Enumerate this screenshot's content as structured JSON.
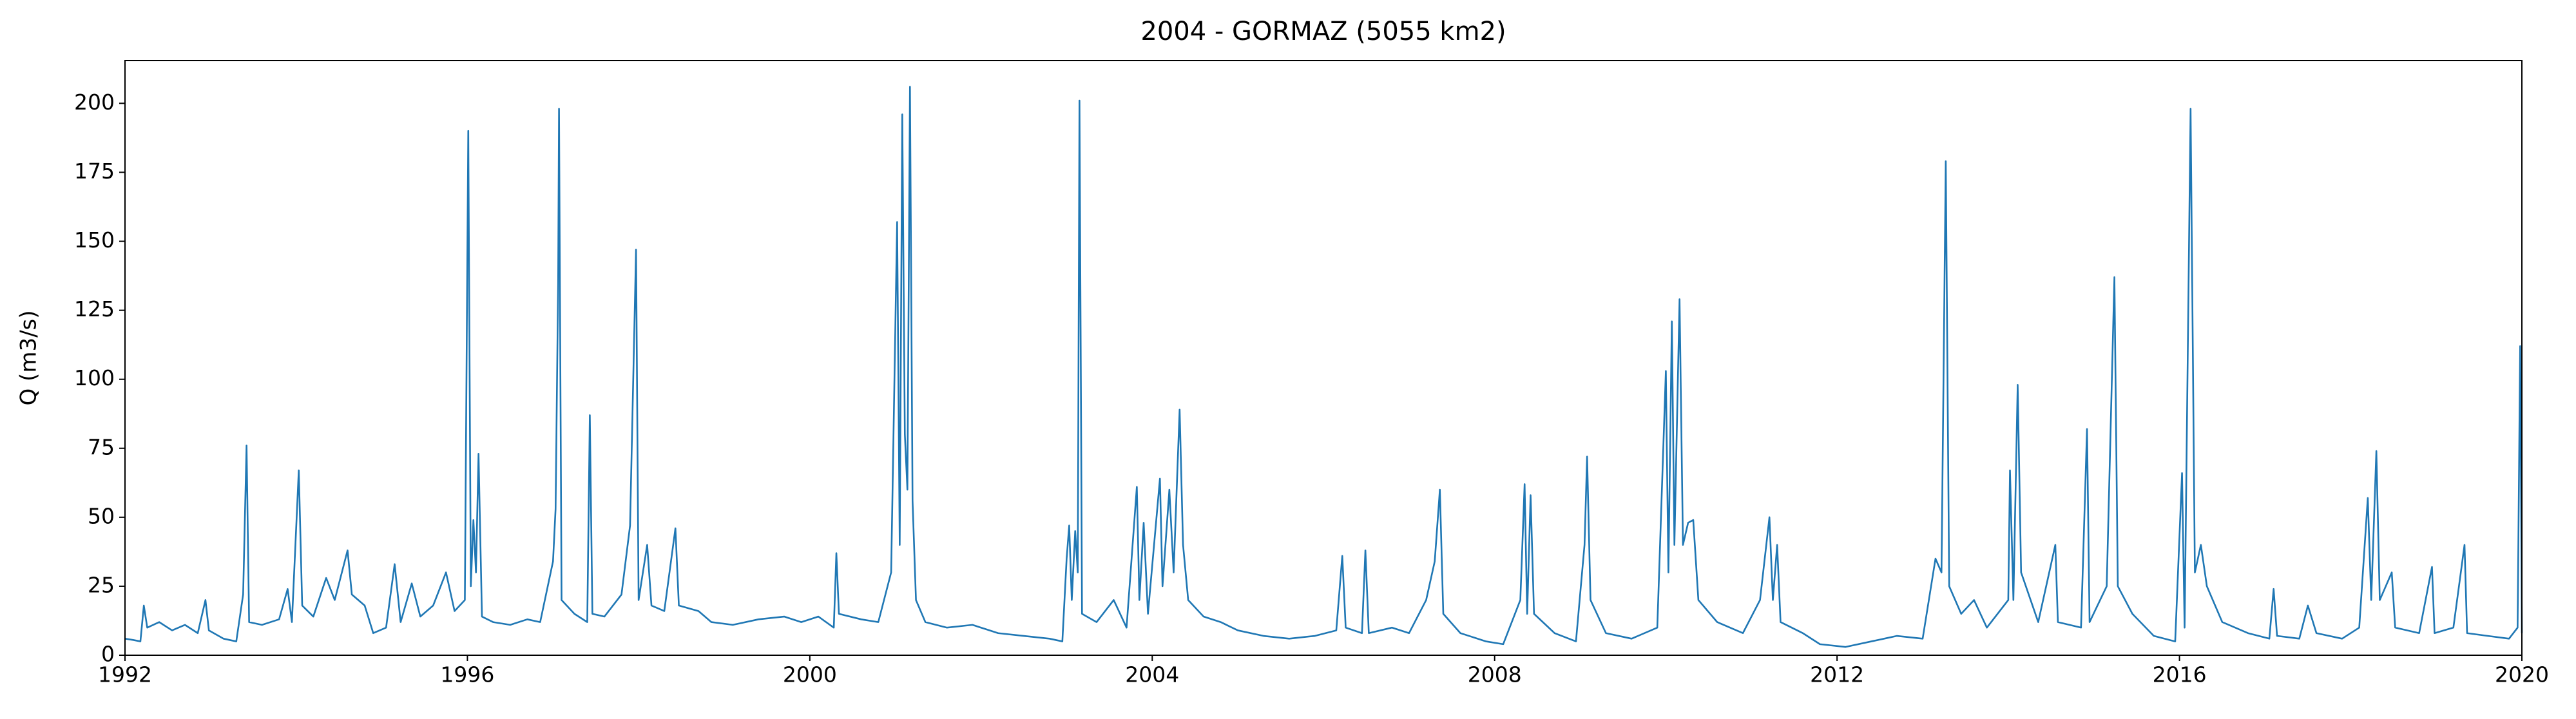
{
  "chart_data": {
    "type": "line",
    "title": "2004 - GORMAZ (5055 km2)",
    "y_label": "Q (m3/s)",
    "xlim": [
      1992,
      2020
    ],
    "xticks": [
      1992,
      1996,
      2000,
      2004,
      2008,
      2012,
      2016,
      2020
    ],
    "ylim": [
      0,
      215.5
    ],
    "yticks": [
      0,
      25,
      50,
      75,
      100,
      125,
      150,
      175,
      200
    ],
    "grid": false,
    "series": [
      {
        "color": "#1f77b4",
        "x": [
          1992.0,
          1992.1,
          1992.18,
          1992.22,
          1992.26,
          1992.4,
          1992.55,
          1992.7,
          1992.85,
          1992.94,
          1992.98,
          1993.15,
          1993.3,
          1993.38,
          1993.42,
          1993.45,
          1993.6,
          1993.8,
          1993.9,
          1993.95,
          1994.03,
          1994.07,
          1994.2,
          1994.35,
          1994.45,
          1994.6,
          1994.65,
          1994.8,
          1994.9,
          1995.05,
          1995.15,
          1995.22,
          1995.35,
          1995.45,
          1995.6,
          1995.75,
          1995.85,
          1995.97,
          1996.01,
          1996.04,
          1996.07,
          1996.1,
          1996.13,
          1996.17,
          1996.3,
          1996.5,
          1996.7,
          1996.85,
          1997.0,
          1997.03,
          1997.06,
          1997.07,
          1997.1,
          1997.25,
          1997.4,
          1997.43,
          1997.46,
          1997.6,
          1997.8,
          1997.9,
          1997.97,
          1998.0,
          1998.1,
          1998.15,
          1998.3,
          1998.43,
          1998.47,
          1998.7,
          1998.85,
          1999.1,
          1999.4,
          1999.7,
          1999.9,
          2000.1,
          2000.28,
          2000.31,
          2000.34,
          2000.6,
          2000.8,
          2000.95,
          2001.02,
          2001.05,
          2001.08,
          2001.11,
          2001.14,
          2001.17,
          2001.2,
          2001.24,
          2001.35,
          2001.6,
          2001.9,
          2002.2,
          2002.5,
          2002.8,
          2002.95,
          2003.0,
          2003.03,
          2003.06,
          2003.1,
          2003.13,
          2003.15,
          2003.18,
          2003.35,
          2003.55,
          2003.7,
          2003.82,
          2003.85,
          2003.9,
          2003.95,
          2004.09,
          2004.12,
          2004.2,
          2004.25,
          2004.32,
          2004.36,
          2004.42,
          2004.6,
          2004.8,
          2005.0,
          2005.3,
          2005.6,
          2005.9,
          2006.15,
          2006.22,
          2006.26,
          2006.45,
          2006.49,
          2006.53,
          2006.8,
          2007.0,
          2007.2,
          2007.3,
          2007.36,
          2007.4,
          2007.6,
          2007.9,
          2008.1,
          2008.3,
          2008.35,
          2008.38,
          2008.42,
          2008.46,
          2008.7,
          2008.95,
          2009.05,
          2009.08,
          2009.12,
          2009.3,
          2009.6,
          2009.9,
          2010.0,
          2010.03,
          2010.07,
          2010.1,
          2010.16,
          2010.2,
          2010.26,
          2010.32,
          2010.38,
          2010.6,
          2010.9,
          2011.1,
          2011.21,
          2011.25,
          2011.3,
          2011.34,
          2011.6,
          2011.8,
          2012.1,
          2012.4,
          2012.7,
          2013.0,
          2013.15,
          2013.22,
          2013.27,
          2013.31,
          2013.45,
          2013.6,
          2013.75,
          2014.0,
          2014.02,
          2014.06,
          2014.11,
          2014.15,
          2014.35,
          2014.55,
          2014.58,
          2014.85,
          2014.92,
          2014.95,
          2015.15,
          2015.24,
          2015.28,
          2015.45,
          2015.7,
          2015.95,
          2016.03,
          2016.06,
          2016.13,
          2016.18,
          2016.25,
          2016.32,
          2016.5,
          2016.8,
          2017.05,
          2017.1,
          2017.14,
          2017.4,
          2017.5,
          2017.6,
          2017.9,
          2018.1,
          2018.2,
          2018.24,
          2018.3,
          2018.34,
          2018.48,
          2018.52,
          2018.8,
          2018.95,
          2018.98,
          2019.2,
          2019.33,
          2019.36,
          2019.6,
          2019.85,
          2019.95,
          2019.98,
          2020.0
        ],
        "values": [
          6,
          5.5,
          5,
          18,
          10,
          12,
          9,
          11,
          8,
          20,
          9,
          6,
          5,
          22,
          76,
          12,
          11,
          13,
          24,
          12,
          67,
          18,
          14,
          28,
          20,
          38,
          22,
          18,
          8,
          10,
          33,
          12,
          26,
          14,
          18,
          30,
          16,
          20,
          190,
          25,
          49,
          30,
          73,
          14,
          12,
          11,
          13,
          12,
          34,
          53,
          135,
          198,
          20,
          15,
          12,
          87,
          15,
          14,
          22,
          47,
          147,
          20,
          40,
          18,
          16,
          46,
          18,
          16,
          12,
          11,
          13,
          14,
          12,
          14,
          10,
          37,
          15,
          13,
          12,
          30,
          157,
          40,
          196,
          80,
          60,
          206,
          56,
          20,
          12,
          10,
          11,
          8,
          7,
          6,
          5,
          35,
          47,
          20,
          45,
          30,
          201,
          15,
          12,
          20,
          10,
          61,
          20,
          48,
          15,
          64,
          25,
          60,
          30,
          89,
          40,
          20,
          14,
          12,
          9,
          7,
          6,
          7,
          9,
          36,
          10,
          8,
          38,
          8,
          10,
          8,
          20,
          34,
          60,
          15,
          8,
          5,
          4,
          20,
          62,
          15,
          58,
          15,
          8,
          5,
          40,
          72,
          20,
          8,
          6,
          10,
          103,
          30,
          121,
          40,
          129,
          40,
          48,
          49,
          20,
          12,
          8,
          20,
          50,
          20,
          40,
          12,
          8,
          4,
          3,
          5,
          7,
          6,
          35,
          30,
          179,
          25,
          15,
          20,
          10,
          20,
          67,
          20,
          98,
          30,
          12,
          40,
          12,
          10,
          82,
          12,
          25,
          137,
          25,
          15,
          7,
          5,
          66,
          10,
          198,
          30,
          40,
          25,
          12,
          8,
          6,
          24,
          7,
          6,
          18,
          8,
          6,
          10,
          57,
          20,
          74,
          20,
          30,
          10,
          8,
          32,
          8,
          10,
          40,
          8,
          7,
          6,
          10,
          112,
          8
        ]
      }
    ]
  }
}
